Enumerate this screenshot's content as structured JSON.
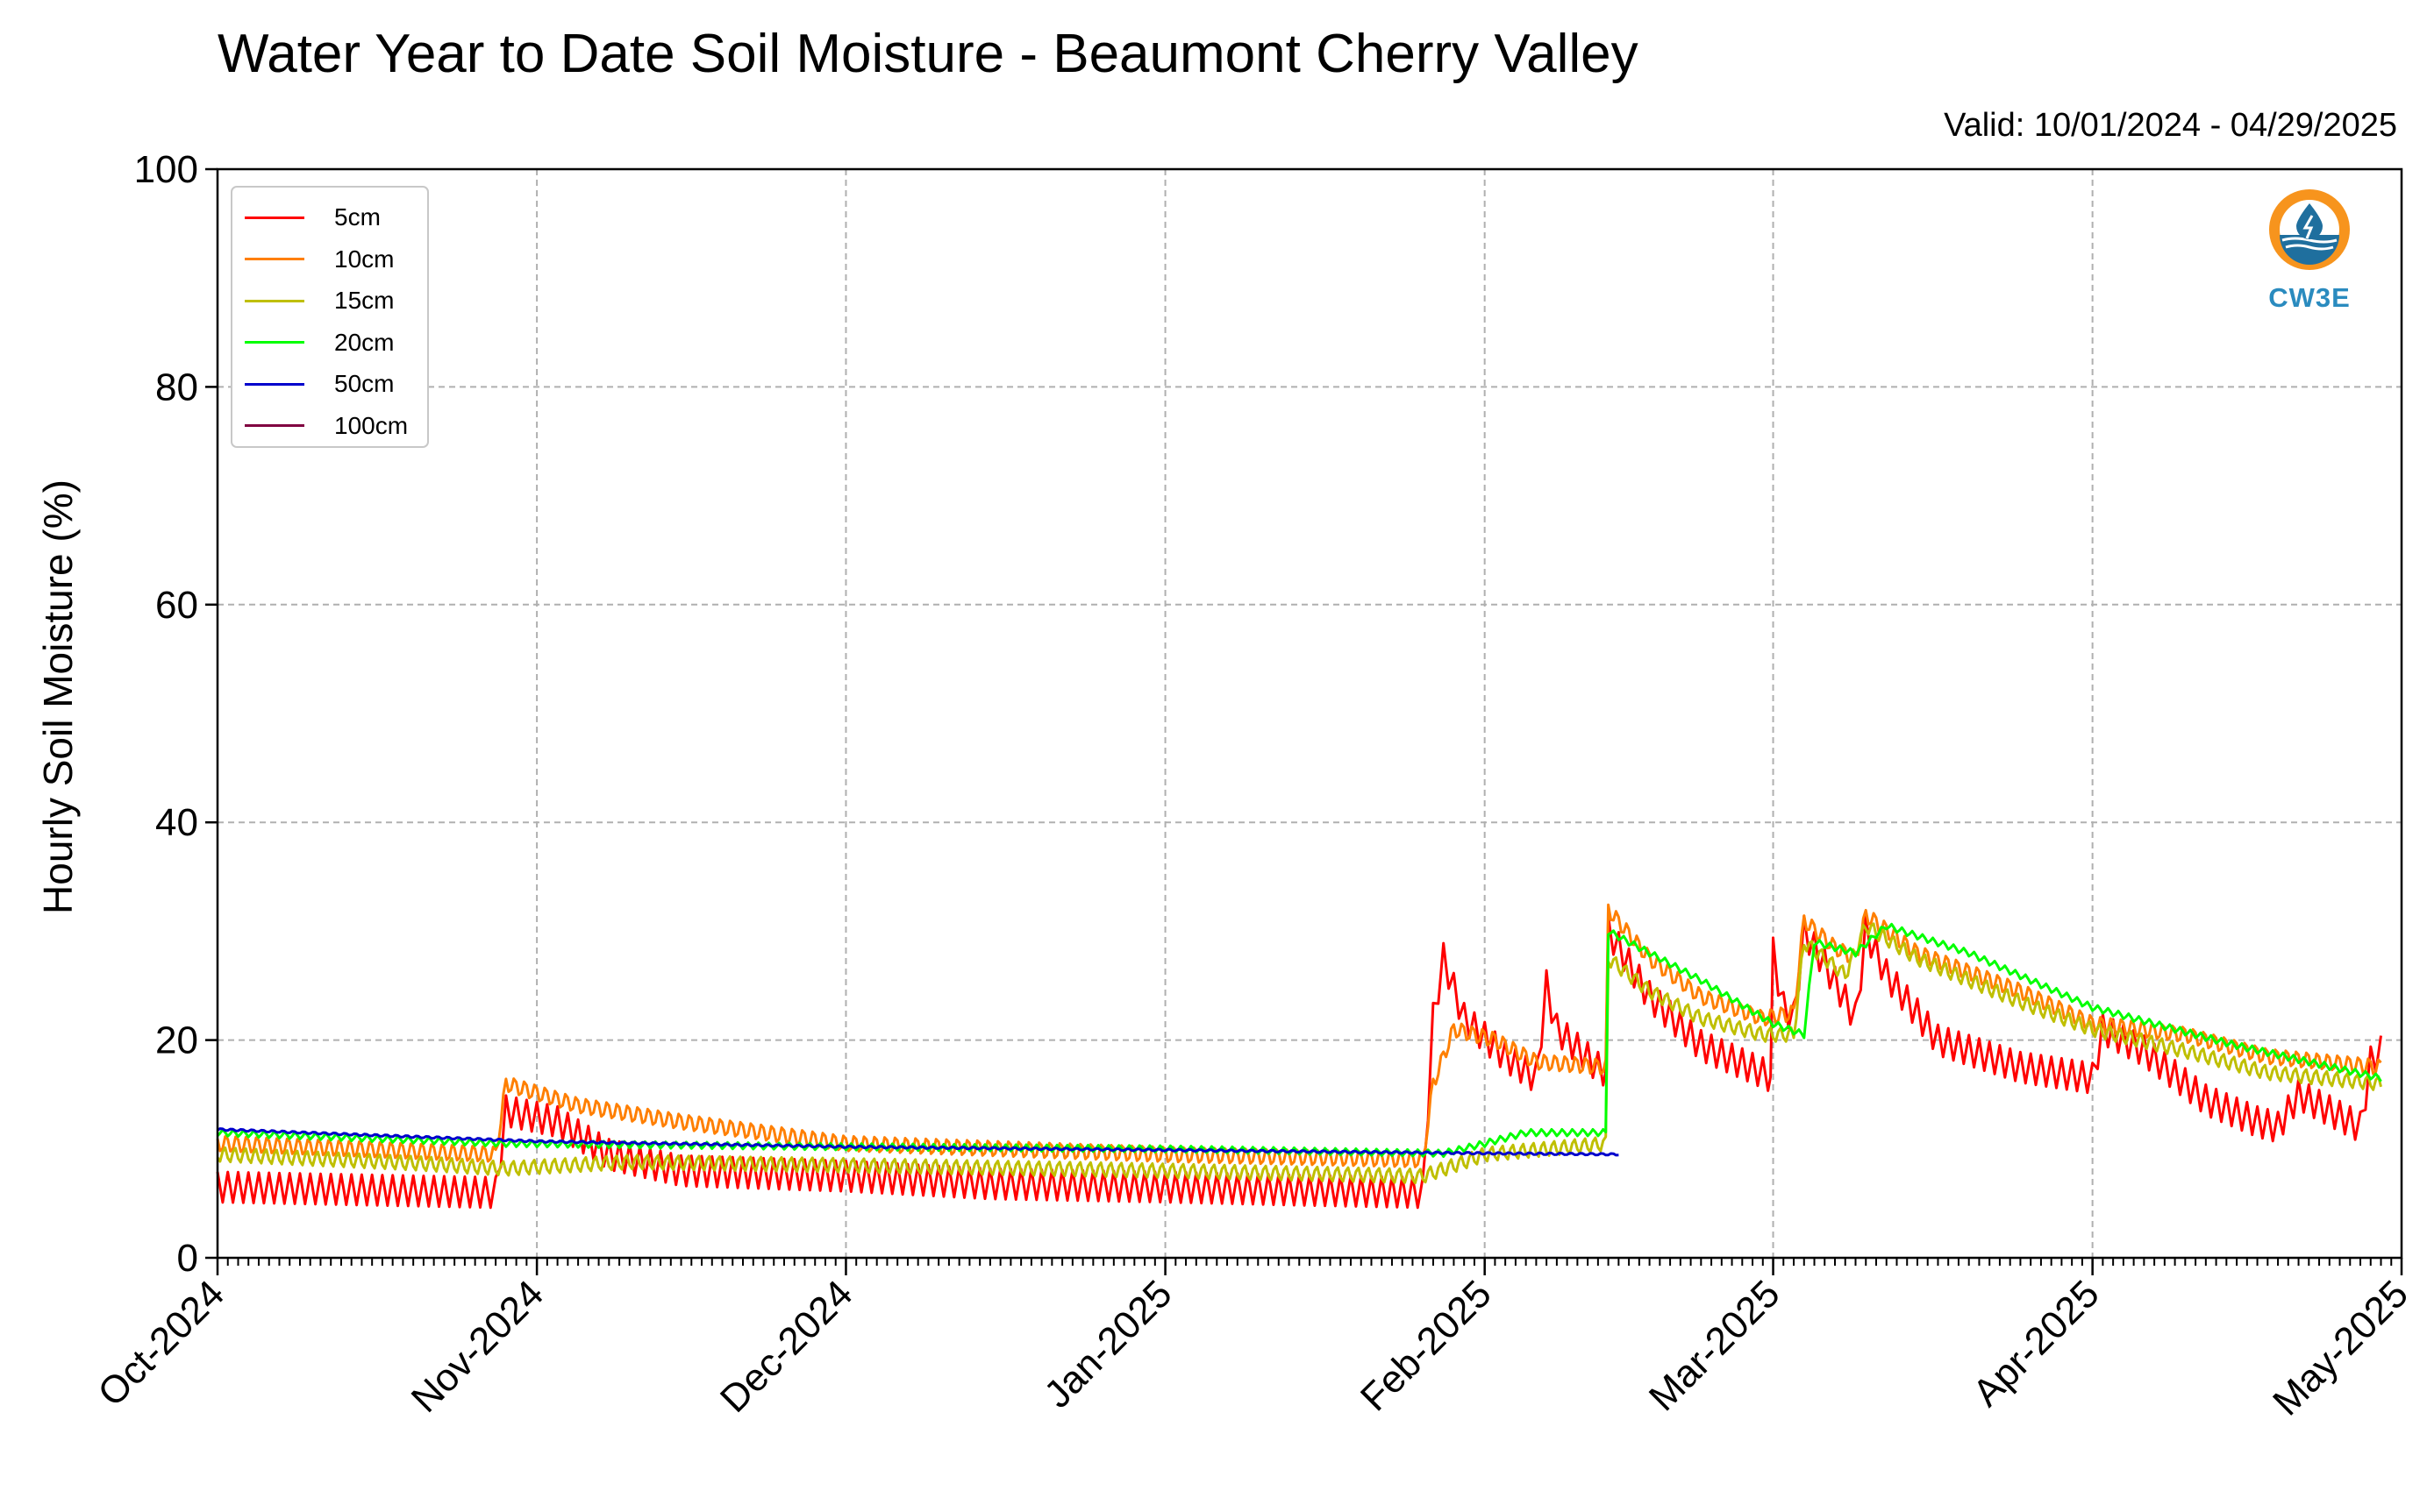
{
  "chart_data": {
    "type": "line",
    "title": "Water Year to Date Soil Moisture - Beaumont Cherry Valley",
    "subtitle": "Valid: 10/01/2024 - 04/29/2025",
    "ylabel": "Hourly Soil Moisture (%)",
    "xlabel": "",
    "ylim": [
      0,
      100
    ],
    "xlim": [
      "2024-10-01",
      "2025-05-01"
    ],
    "yticks": [
      "0",
      "20",
      "40",
      "60",
      "80",
      "100"
    ],
    "xticks": [
      {
        "date": "2024-10-01",
        "label": "Oct-2024"
      },
      {
        "date": "2024-11-01",
        "label": "Nov-2024"
      },
      {
        "date": "2024-12-01",
        "label": "Dec-2024"
      },
      {
        "date": "2025-01-01",
        "label": "Jan-2025"
      },
      {
        "date": "2025-02-01",
        "label": "Feb-2025"
      },
      {
        "date": "2025-03-01",
        "label": "Mar-2025"
      },
      {
        "date": "2025-04-01",
        "label": "Apr-2025"
      },
      {
        "date": "2025-05-01",
        "label": "May-2025"
      }
    ],
    "grid": true,
    "legend_position": "top-left",
    "series": [
      {
        "name": "5cm",
        "color": "#ff0000",
        "diurnal": 1.4,
        "points": [
          [
            "2024-10-01",
            6.5
          ],
          [
            "2024-10-28",
            6.0
          ],
          [
            "2024-10-29",
            13.5
          ],
          [
            "2024-11-03",
            12.5
          ],
          [
            "2024-11-08",
            9.5
          ],
          [
            "2024-11-15",
            8.0
          ],
          [
            "2024-12-01",
            7.5
          ],
          [
            "2024-12-15",
            6.8
          ],
          [
            "2025-01-01",
            6.5
          ],
          [
            "2025-01-15",
            6.2
          ],
          [
            "2025-01-26",
            6.0
          ],
          [
            "2025-01-27",
            22.0
          ],
          [
            "2025-01-28",
            27.5
          ],
          [
            "2025-01-30",
            22.0
          ],
          [
            "2025-02-03",
            18.5
          ],
          [
            "2025-02-06",
            16.5
          ],
          [
            "2025-02-07",
            25.0
          ],
          [
            "2025-02-08",
            21.0
          ],
          [
            "2025-02-12",
            17.5
          ],
          [
            "2025-02-13",
            17.0
          ],
          [
            "2025-02-13",
            30.0
          ],
          [
            "2025-02-14",
            28.5
          ],
          [
            "2025-02-17",
            24.0
          ],
          [
            "2025-02-22",
            19.5
          ],
          [
            "2025-02-28",
            17.0
          ],
          [
            "2025-03-01",
            16.5
          ],
          [
            "2025-03-01",
            28.0
          ],
          [
            "2025-03-02",
            23.0
          ],
          [
            "2025-03-03",
            22.0
          ],
          [
            "2025-03-04",
            30.0
          ],
          [
            "2025-03-06",
            27.0
          ],
          [
            "2025-03-09",
            22.0
          ],
          [
            "2025-03-10",
            30.0
          ],
          [
            "2025-03-12",
            26.0
          ],
          [
            "2025-03-17",
            20.0
          ],
          [
            "2025-03-25",
            17.5
          ],
          [
            "2025-04-01",
            16.5
          ],
          [
            "2025-04-02",
            21.0
          ],
          [
            "2025-04-06",
            19.0
          ],
          [
            "2025-04-12",
            14.5
          ],
          [
            "2025-04-17",
            12.5
          ],
          [
            "2025-04-19",
            12.0
          ],
          [
            "2025-04-21",
            15.0
          ],
          [
            "2025-04-24",
            13.5
          ],
          [
            "2025-04-27",
            12.0
          ],
          [
            "2025-04-28",
            18.0
          ],
          [
            "2025-04-29",
            19.0
          ]
        ]
      },
      {
        "name": "10cm",
        "color": "#ff7f00",
        "diurnal": 0.8,
        "points": [
          [
            "2024-10-01",
            10.5
          ],
          [
            "2024-10-28",
            9.5
          ],
          [
            "2024-10-29",
            16.0
          ],
          [
            "2024-11-05",
            14.0
          ],
          [
            "2024-11-15",
            12.5
          ],
          [
            "2024-12-01",
            10.5
          ],
          [
            "2025-01-01",
            9.5
          ],
          [
            "2025-01-26",
            9.0
          ],
          [
            "2025-01-27",
            16.0
          ],
          [
            "2025-01-29",
            21.0
          ],
          [
            "2025-02-02",
            20.0
          ],
          [
            "2025-02-06",
            18.0
          ],
          [
            "2025-02-13",
            17.5
          ],
          [
            "2025-02-13",
            32.0
          ],
          [
            "2025-02-17",
            27.5
          ],
          [
            "2025-02-22",
            24.0
          ],
          [
            "2025-02-28",
            22.0
          ],
          [
            "2025-03-03",
            22.5
          ],
          [
            "2025-03-04",
            31.0
          ],
          [
            "2025-03-07",
            28.5
          ],
          [
            "2025-03-09",
            27.5
          ],
          [
            "2025-03-10",
            31.5
          ],
          [
            "2025-03-15",
            28.0
          ],
          [
            "2025-03-25",
            24.5
          ],
          [
            "2025-04-01",
            21.5
          ],
          [
            "2025-04-10",
            20.5
          ],
          [
            "2025-04-18",
            18.5
          ],
          [
            "2025-04-29",
            17.5
          ]
        ]
      },
      {
        "name": "15cm",
        "color": "#bfbf00",
        "diurnal": 0.7,
        "points": [
          [
            "2024-10-01",
            9.5
          ],
          [
            "2024-10-20",
            8.7
          ],
          [
            "2024-10-29",
            8.2
          ],
          [
            "2024-11-10",
            8.8
          ],
          [
            "2024-12-01",
            8.5
          ],
          [
            "2025-01-01",
            8.0
          ],
          [
            "2025-01-26",
            7.5
          ],
          [
            "2025-01-30",
            8.8
          ],
          [
            "2025-02-01",
            9.5
          ],
          [
            "2025-02-13",
            10.5
          ],
          [
            "2025-02-13",
            27.5
          ],
          [
            "2025-02-17",
            24.5
          ],
          [
            "2025-02-22",
            22.0
          ],
          [
            "2025-02-28",
            20.5
          ],
          [
            "2025-03-03",
            20.5
          ],
          [
            "2025-03-04",
            29.0
          ],
          [
            "2025-03-08",
            26.0
          ],
          [
            "2025-03-10",
            30.5
          ],
          [
            "2025-03-15",
            27.5
          ],
          [
            "2025-03-25",
            23.5
          ],
          [
            "2025-04-01",
            21.0
          ],
          [
            "2025-04-10",
            19.0
          ],
          [
            "2025-04-18",
            17.0
          ],
          [
            "2025-04-29",
            16.0
          ]
        ]
      },
      {
        "name": "20cm",
        "color": "#00ff00",
        "diurnal": 0.3,
        "points": [
          [
            "2024-10-01",
            11.5
          ],
          [
            "2024-10-29",
            10.5
          ],
          [
            "2024-12-01",
            10.2
          ],
          [
            "2025-01-01",
            10.0
          ],
          [
            "2025-01-28",
            9.6
          ],
          [
            "2025-02-01",
            10.5
          ],
          [
            "2025-02-05",
            11.5
          ],
          [
            "2025-02-13",
            11.5
          ],
          [
            "2025-02-13",
            30.0
          ],
          [
            "2025-02-17",
            28.0
          ],
          [
            "2025-02-22",
            25.5
          ],
          [
            "2025-03-01",
            21.5
          ],
          [
            "2025-03-04",
            20.5
          ],
          [
            "2025-03-05",
            29.0
          ],
          [
            "2025-03-09",
            28.0
          ],
          [
            "2025-03-12",
            30.5
          ],
          [
            "2025-03-20",
            28.0
          ],
          [
            "2025-04-01",
            23.0
          ],
          [
            "2025-04-15",
            19.5
          ],
          [
            "2025-04-29",
            16.5
          ]
        ]
      },
      {
        "name": "50cm",
        "color": "#0000cc",
        "diurnal": 0.1,
        "points": [
          [
            "2024-10-01",
            11.8
          ],
          [
            "2024-10-15",
            11.3
          ],
          [
            "2024-11-01",
            10.7
          ],
          [
            "2024-12-01",
            10.2
          ],
          [
            "2025-01-01",
            9.9
          ],
          [
            "2025-02-01",
            9.6
          ],
          [
            "2025-02-14",
            9.5
          ]
        ]
      },
      {
        "name": "100cm",
        "color": "#800040",
        "diurnal": 0,
        "points": []
      }
    ]
  }
}
